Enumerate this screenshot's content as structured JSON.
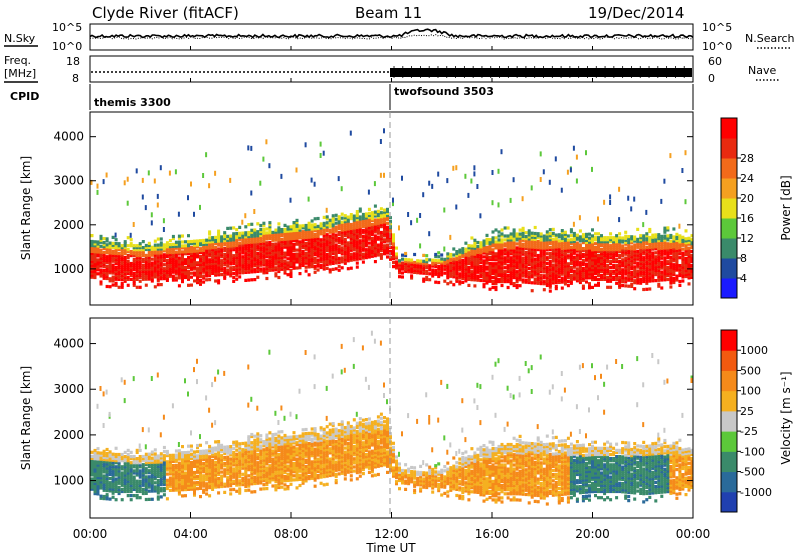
{
  "header": {
    "station": "Clyde River (fitACF)",
    "beam": "Beam 11",
    "date": "19/Dec/2014"
  },
  "noise_panel": {
    "left_label": "N.Sky",
    "right_label": "N.Search",
    "tick_top": "10^5",
    "tick_bottom": "10^0",
    "right_tick_top": "10^5",
    "right_tick_bottom": "10^0"
  },
  "freq_panel": {
    "left_label_line1": "Freq.",
    "left_label_line2": "[MHz]",
    "right_label": "Nave",
    "left_ticks": [
      "18",
      "8"
    ],
    "right_ticks": [
      "60",
      "0"
    ]
  },
  "cpid_panel": {
    "label": "CPID",
    "modes": [
      {
        "name": "themis 3300",
        "start_hour": 0
      },
      {
        "name": "twofsound 3503",
        "start_hour": 12
      }
    ]
  },
  "x_axis": {
    "label": "Time UT",
    "ticks": [
      "00:00",
      "04:00",
      "08:00",
      "12:00",
      "16:00",
      "20:00",
      "00:00"
    ],
    "range_hours": [
      0,
      24
    ]
  },
  "power_panel": {
    "ylabel": "Slant Range [km]",
    "yticks": [
      "1000",
      "2000",
      "3000",
      "4000"
    ],
    "ylim_km": [
      180,
      4560
    ],
    "colorbar_label": "Power [dB]",
    "colorbar_ticks": [
      "4",
      "8",
      "12",
      "16",
      "20",
      "24",
      "28"
    ],
    "colorbar_colors": [
      "#1a1aff",
      "#1f4aa0",
      "#3a8a6a",
      "#5cc83a",
      "#e8e01a",
      "#f5a020",
      "#f26a1a",
      "#e82a10",
      "#ff0000"
    ]
  },
  "velocity_panel": {
    "ylabel": "Slant Range [km]",
    "yticks": [
      "1000",
      "2000",
      "3000",
      "4000"
    ],
    "ylim_km": [
      180,
      4560
    ],
    "colorbar_label": "Velocity [m s⁻¹]",
    "colorbar_ticks": [
      "1000",
      "500",
      "100",
      "25",
      "-25",
      "-100",
      "-500",
      "-1000"
    ],
    "colorbar_colors": [
      "#2040b0",
      "#2a6a9a",
      "#3a8a6a",
      "#5cc83a",
      "#c8c8c8",
      "#f5b020",
      "#f58a1a",
      "#f25a10",
      "#ff0000"
    ]
  },
  "chart_data": {
    "type": "heatmap",
    "x_unit": "hours UT",
    "y_unit": "km",
    "main_band": [
      {
        "x": 0.0,
        "low": 750,
        "high": 1600
      },
      {
        "x": 1.0,
        "low": 700,
        "high": 1550
      },
      {
        "x": 2.0,
        "low": 700,
        "high": 1500
      },
      {
        "x": 3.0,
        "low": 720,
        "high": 1550
      },
      {
        "x": 4.0,
        "low": 750,
        "high": 1600
      },
      {
        "x": 5.0,
        "low": 800,
        "high": 1700
      },
      {
        "x": 6.0,
        "low": 850,
        "high": 1800
      },
      {
        "x": 7.0,
        "low": 900,
        "high": 1900
      },
      {
        "x": 8.0,
        "low": 950,
        "high": 1950
      },
      {
        "x": 9.0,
        "low": 1000,
        "high": 2000
      },
      {
        "x": 10.0,
        "low": 1100,
        "high": 2150
      },
      {
        "x": 11.0,
        "low": 1200,
        "high": 2250
      },
      {
        "x": 11.8,
        "low": 1300,
        "high": 2300
      },
      {
        "x": 12.2,
        "low": 900,
        "high": 1200
      },
      {
        "x": 13.0,
        "low": 850,
        "high": 1150
      },
      {
        "x": 14.0,
        "low": 800,
        "high": 1200
      },
      {
        "x": 15.0,
        "low": 700,
        "high": 1500
      },
      {
        "x": 16.0,
        "low": 650,
        "high": 1700
      },
      {
        "x": 17.0,
        "low": 650,
        "high": 1800
      },
      {
        "x": 18.0,
        "low": 600,
        "high": 1800
      },
      {
        "x": 19.0,
        "low": 650,
        "high": 1750
      },
      {
        "x": 20.0,
        "low": 700,
        "high": 1700
      },
      {
        "x": 21.0,
        "low": 700,
        "high": 1700
      },
      {
        "x": 22.0,
        "low": 650,
        "high": 1750
      },
      {
        "x": 23.0,
        "low": 700,
        "high": 1750
      },
      {
        "x": 24.0,
        "low": 800,
        "high": 1650
      }
    ]
  }
}
